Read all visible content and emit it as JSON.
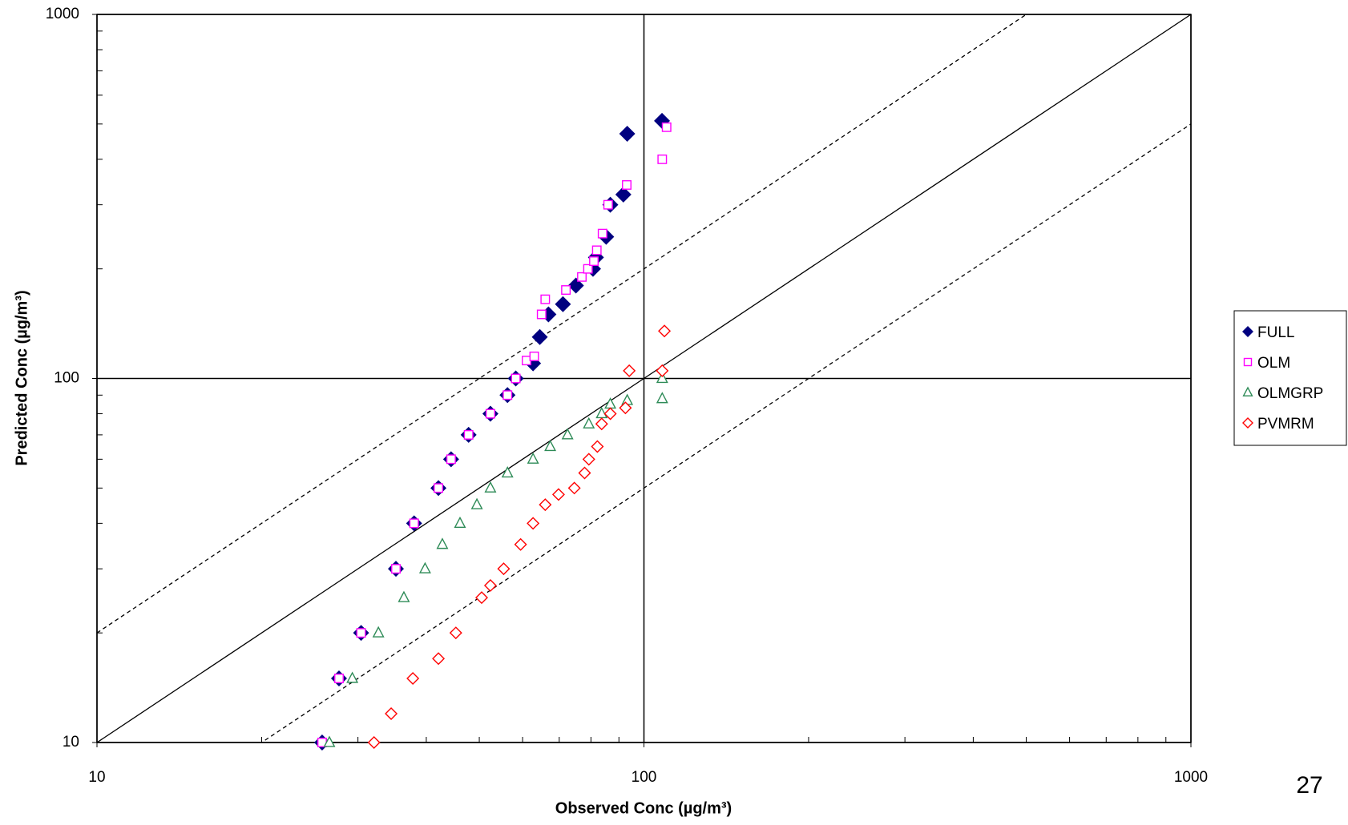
{
  "chart_data": {
    "type": "scatter",
    "x_label": "Observed  Conc (µg/m³)",
    "y_label": "Predicted Conc (µg/m³)",
    "log_x": true,
    "log_y": true,
    "xlim": [
      10,
      1000
    ],
    "ylim": [
      10,
      1000
    ],
    "xticks": [
      10,
      100,
      1000
    ],
    "yticks": [
      10,
      100,
      1000
    ],
    "grid": true,
    "reference_ratios": [
      1,
      2,
      0.5
    ],
    "legend": "right",
    "series": [
      {
        "name": "FULL",
        "color": "#000080",
        "marker": "diamond-filled",
        "x": [
          25.8,
          27.7,
          30.4,
          35.2,
          38.0,
          42.1,
          44.4,
          47.8,
          52.4,
          56.3,
          58.3,
          62.7,
          64.5,
          66.9,
          71.1,
          75.1,
          80.7,
          81.7,
          85.3,
          86.8,
          91.7,
          93.2,
          107.9
        ],
        "values": [
          10,
          15,
          20,
          30,
          40,
          50,
          60,
          70,
          80,
          90,
          100,
          110,
          130,
          150,
          160,
          180,
          200,
          215,
          245,
          300,
          320,
          470,
          510
        ]
      },
      {
        "name": "OLM",
        "color": "#ff00ff",
        "marker": "square-open",
        "x": [
          25.8,
          27.7,
          30.4,
          35.2,
          38.0,
          42.1,
          44.4,
          47.8,
          52.4,
          56.3,
          58.3,
          61,
          63,
          65,
          66,
          72,
          77,
          79,
          81,
          82,
          84,
          86,
          93,
          108,
          110
        ],
        "values": [
          10,
          15,
          20,
          30,
          40,
          50,
          60,
          70,
          80,
          90,
          100,
          112,
          115,
          150,
          165,
          175,
          190,
          200,
          210,
          225,
          250,
          300,
          340,
          400,
          490
        ]
      },
      {
        "name": "OLMGRP",
        "color": "#2e8b57",
        "marker": "triangle-open",
        "x": [
          26.6,
          29.3,
          32.7,
          36.4,
          39.8,
          42.8,
          46.1,
          49.5,
          52.4,
          56.3,
          62.7,
          67.4,
          72.5,
          79.3,
          83.7,
          86.8,
          93.2,
          108,
          108
        ],
        "values": [
          10,
          15,
          20,
          25,
          30,
          35,
          40,
          45,
          50,
          55,
          60,
          65,
          70,
          75,
          80,
          85,
          87,
          88,
          100
        ]
      },
      {
        "name": "PVMRM",
        "color": "#ff0000",
        "marker": "diamond-open",
        "x": [
          32.1,
          34.5,
          37.8,
          42.1,
          45.3,
          50.5,
          52.4,
          55.4,
          59.5,
          62.7,
          66.0,
          69.8,
          74.6,
          77.9,
          79.3,
          82.2,
          83.7,
          86.8,
          92.5,
          94,
          108,
          109
        ],
        "values": [
          10,
          12,
          15,
          17,
          20,
          25,
          27,
          30,
          35,
          40,
          45,
          48,
          50,
          55,
          60,
          65,
          75,
          80,
          83,
          105,
          105,
          135
        ]
      }
    ]
  },
  "page_number": "27"
}
